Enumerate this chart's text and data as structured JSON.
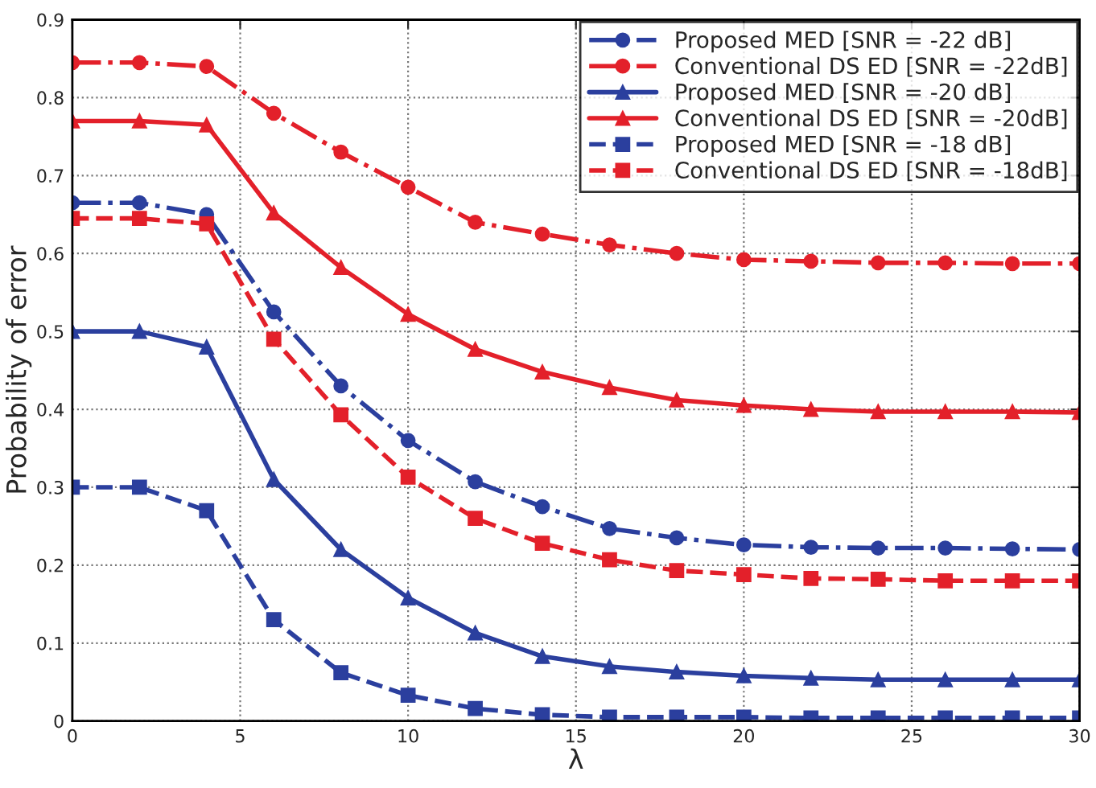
{
  "chart_data": {
    "type": "line",
    "xlabel": "λ",
    "ylabel": "Probability of error",
    "x": [
      0,
      2,
      4,
      6,
      8,
      10,
      12,
      14,
      16,
      18,
      20,
      22,
      24,
      26,
      28,
      30
    ],
    "xlim": [
      0,
      30
    ],
    "xticks": [
      0,
      5,
      10,
      15,
      20,
      25,
      30
    ],
    "ylim": [
      0,
      0.9
    ],
    "yticks": [
      0,
      0.1,
      0.2,
      0.3,
      0.4,
      0.5,
      0.6,
      0.7,
      0.8,
      0.9
    ],
    "grid": true,
    "legend": "top right",
    "series": [
      {
        "name": "Proposed MED [SNR = -22 dB]",
        "color": "#2b3f9e",
        "marker": "circle",
        "line_style": "dashdot",
        "values": [
          0.665,
          0.665,
          0.65,
          0.525,
          0.43,
          0.36,
          0.307,
          0.275,
          0.247,
          0.235,
          0.226,
          0.223,
          0.222,
          0.222,
          0.221,
          0.22
        ]
      },
      {
        "name": "Conventional DS ED [SNR = -22dB]",
        "color": "#e3202a",
        "marker": "circle",
        "line_style": "dashdot",
        "values": [
          0.845,
          0.845,
          0.84,
          0.78,
          0.73,
          0.685,
          0.64,
          0.625,
          0.611,
          0.6,
          0.592,
          0.59,
          0.588,
          0.588,
          0.587,
          0.587
        ]
      },
      {
        "name": "Proposed MED [SNR = -20 dB]",
        "color": "#2b3f9e",
        "marker": "triangle",
        "line_style": "solid",
        "values": [
          0.5,
          0.5,
          0.48,
          0.31,
          0.22,
          0.158,
          0.113,
          0.083,
          0.07,
          0.063,
          0.058,
          0.055,
          0.053,
          0.053,
          0.053,
          0.053
        ]
      },
      {
        "name": "Conventional DS ED [SNR = -20dB]",
        "color": "#e3202a",
        "marker": "triangle",
        "line_style": "solid",
        "values": [
          0.77,
          0.77,
          0.765,
          0.652,
          0.582,
          0.522,
          0.477,
          0.448,
          0.428,
          0.412,
          0.405,
          0.4,
          0.397,
          0.397,
          0.397,
          0.396
        ]
      },
      {
        "name": "Proposed MED [SNR = -18 dB]",
        "color": "#2b3f9e",
        "marker": "square",
        "line_style": "dashed",
        "values": [
          0.3,
          0.3,
          0.27,
          0.13,
          0.062,
          0.033,
          0.016,
          0.008,
          0.005,
          0.005,
          0.005,
          0.004,
          0.004,
          0.004,
          0.004,
          0.004
        ]
      },
      {
        "name": "Conventional DS ED [SNR = -18dB]",
        "color": "#e3202a",
        "marker": "square",
        "line_style": "dashed",
        "values": [
          0.645,
          0.645,
          0.638,
          0.49,
          0.393,
          0.313,
          0.26,
          0.228,
          0.207,
          0.193,
          0.188,
          0.183,
          0.182,
          0.18,
          0.18,
          0.18
        ]
      }
    ]
  }
}
